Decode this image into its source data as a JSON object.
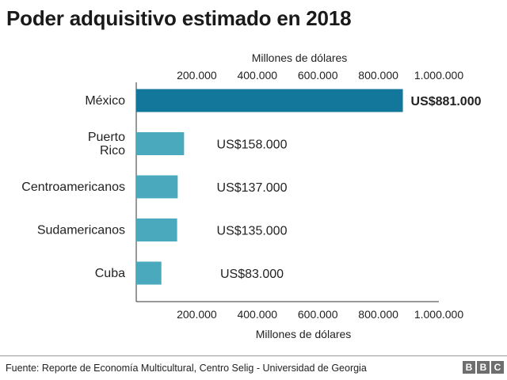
{
  "chart_data": {
    "type": "bar",
    "orientation": "horizontal",
    "title": "Poder adquisitivo estimado en 2018",
    "xlabel_top": "Millones de dólares",
    "xlabel_bottom": "Millones de dólares",
    "xlim": [
      0,
      1000000
    ],
    "ticks": [
      200000,
      400000,
      600000,
      800000,
      1000000
    ],
    "tick_labels": [
      "200.000",
      "400.000",
      "600.000",
      "800.000",
      "1.000.000"
    ],
    "categories": [
      "México",
      "Puerto Rico",
      "Centroamericanos",
      "Sudamericanos",
      "Cuba"
    ],
    "category_lines": [
      [
        "México"
      ],
      [
        "Puerto",
        "Rico"
      ],
      [
        "Centroamericanos"
      ],
      [
        "Sudamericanos"
      ],
      [
        "Cuba"
      ]
    ],
    "values": [
      881000,
      158000,
      137000,
      135000,
      83000
    ],
    "value_labels": [
      "US$881.000",
      "US$158.000",
      "US$137.000",
      "US$135.000",
      "US$83.000"
    ],
    "colors": {
      "highlight": "#13779b",
      "bar": "#4aa9bd",
      "axis": "#333333",
      "text": "#222222"
    }
  },
  "footer": {
    "source": "Fuente: Reporte de Economía Multicultural, Centro Selig - Universidad de Georgia",
    "logo_letters": [
      "B",
      "B",
      "C"
    ]
  }
}
